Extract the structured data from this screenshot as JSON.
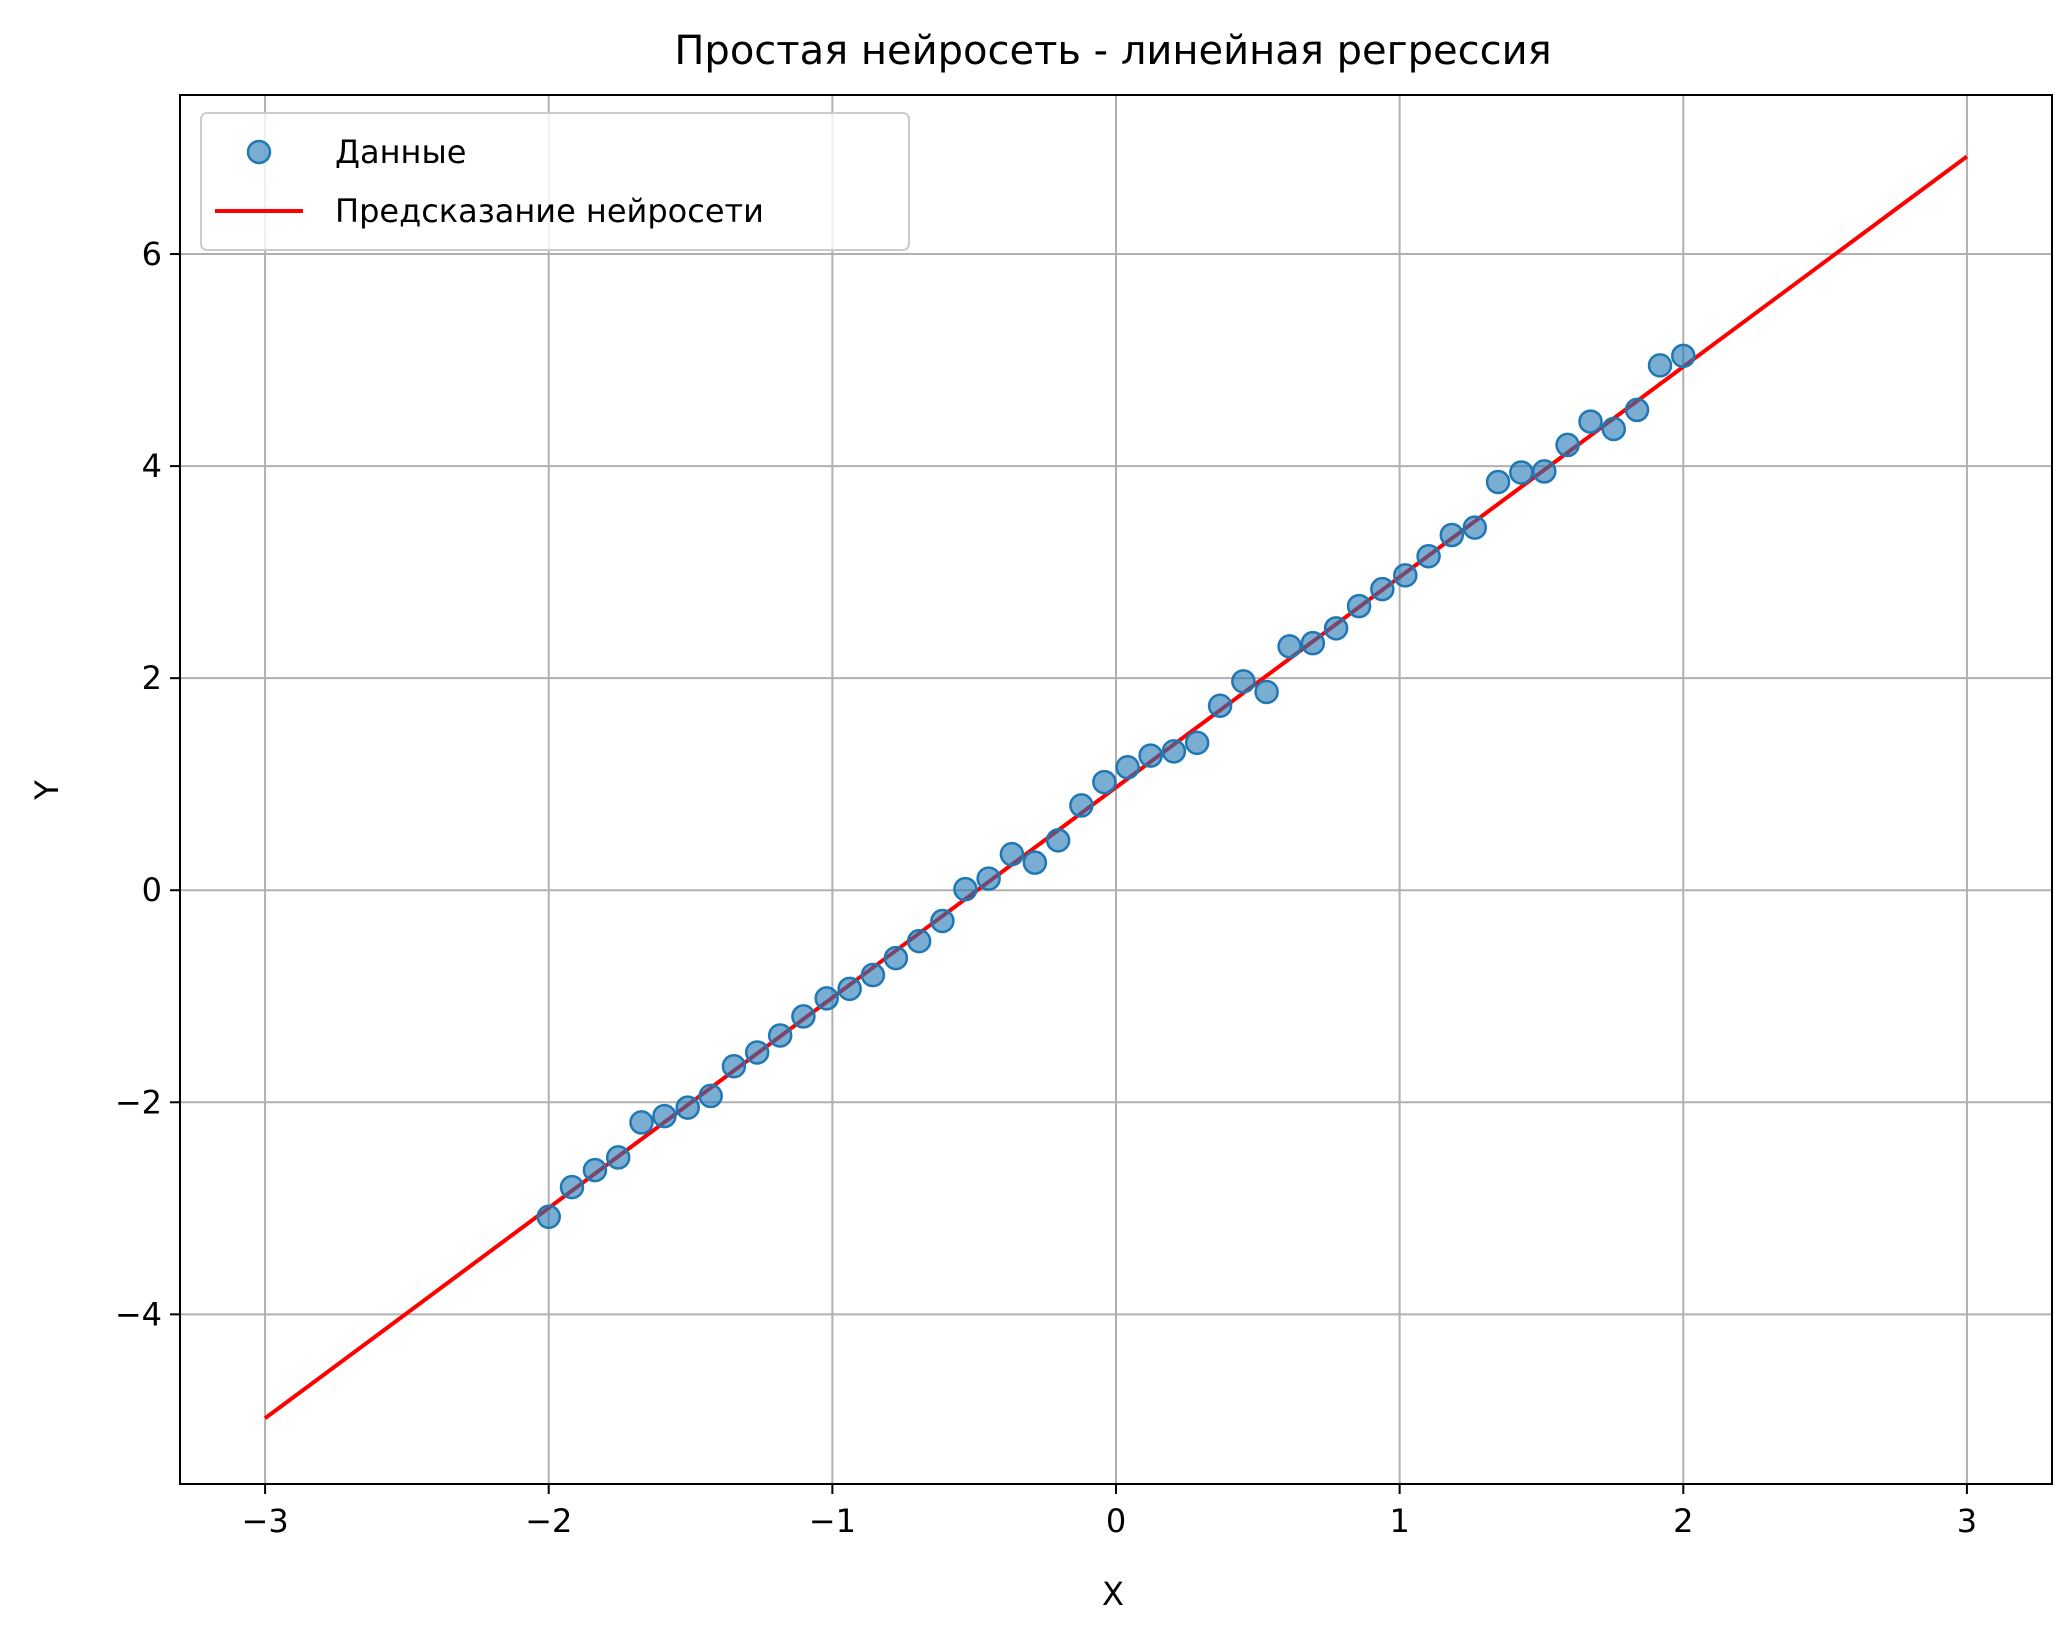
{
  "chart_data": {
    "type": "scatter",
    "title": "Простая нейросеть - линейная регрессия",
    "xlabel": "X",
    "ylabel": "Y",
    "xlim": [
      -3.3,
      3.3
    ],
    "ylim": [
      -5.6,
      7.5
    ],
    "grid": true,
    "legend_position": "upper left",
    "xticks": [
      -3,
      -2,
      -1,
      0,
      1,
      2,
      3
    ],
    "xtick_labels": [
      "−3",
      "−2",
      "−1",
      "0",
      "1",
      "2",
      "3"
    ],
    "yticks": [
      -4,
      -2,
      0,
      2,
      4,
      6
    ],
    "ytick_labels": [
      "−4",
      "−2",
      "0",
      "2",
      "4",
      "6"
    ],
    "series": [
      {
        "name": "Данные",
        "kind": "scatter",
        "color": "#1f77b4",
        "x": [
          -2.0,
          -1.918,
          -1.837,
          -1.755,
          -1.673,
          -1.592,
          -1.51,
          -1.429,
          -1.347,
          -1.265,
          -1.184,
          -1.102,
          -1.02,
          -0.939,
          -0.857,
          -0.776,
          -0.694,
          -0.612,
          -0.531,
          -0.449,
          -0.367,
          -0.286,
          -0.204,
          -0.122,
          -0.041,
          0.041,
          0.122,
          0.204,
          0.286,
          0.367,
          0.449,
          0.531,
          0.612,
          0.694,
          0.776,
          0.857,
          0.939,
          1.02,
          1.102,
          1.184,
          1.265,
          1.347,
          1.429,
          1.51,
          1.592,
          1.673,
          1.755,
          1.837,
          1.918,
          2.0
        ],
        "y": [
          -3.08,
          -2.8,
          -2.64,
          -2.52,
          -2.19,
          -2.13,
          -2.05,
          -1.94,
          -1.66,
          -1.53,
          -1.37,
          -1.19,
          -1.02,
          -0.93,
          -0.8,
          -0.64,
          -0.48,
          -0.29,
          0.01,
          0.11,
          0.34,
          0.26,
          0.47,
          0.8,
          1.02,
          1.16,
          1.27,
          1.31,
          1.39,
          1.74,
          1.97,
          1.87,
          2.3,
          2.33,
          2.47,
          2.68,
          2.84,
          2.97,
          3.15,
          3.35,
          3.42,
          3.85,
          3.94,
          3.95,
          4.2,
          4.42,
          4.35,
          4.53,
          4.95,
          5.04
        ]
      },
      {
        "name": "Предсказание нейросети",
        "kind": "line",
        "color": "#ff0000",
        "x": [
          -3,
          3
        ],
        "y": [
          -4.98,
          6.92
        ]
      }
    ]
  }
}
